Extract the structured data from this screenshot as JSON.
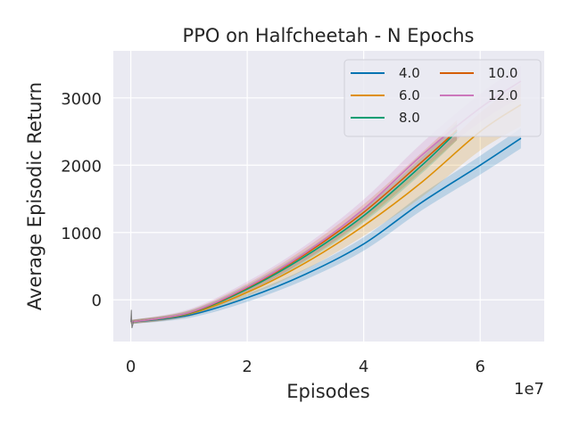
{
  "chart_data": {
    "type": "line",
    "title": "PPO on Halfcheetah - N Epochs",
    "xlabel": "Episodes",
    "ylabel": "Average Episodic Return",
    "x_scale_label": "1e7",
    "xlim": [
      -0.3,
      7.1
    ],
    "ylim": [
      -620,
      3700
    ],
    "x_ticks": [
      0,
      2,
      4,
      6
    ],
    "y_ticks": [
      0,
      1000,
      2000,
      3000
    ],
    "x_tick_labels": [
      "0",
      "2",
      "4",
      "6"
    ],
    "y_tick_labels": [
      "0",
      "1000",
      "2000",
      "3000"
    ],
    "grid": true,
    "legend_position": "top-right",
    "series": [
      {
        "name": "4.0",
        "color": "#0173b2",
        "x": [
          0,
          1,
          2,
          3,
          4,
          5,
          6,
          6.7
        ],
        "y": [
          -330,
          -230,
          30,
          380,
          830,
          1450,
          2000,
          2400
        ],
        "band": [
          30,
          40,
          60,
          80,
          100,
          120,
          140,
          150
        ]
      },
      {
        "name": "6.0",
        "color": "#de8f05",
        "x": [
          0,
          1,
          2,
          3,
          4,
          5,
          6,
          6.7
        ],
        "y": [
          -330,
          -210,
          110,
          550,
          1100,
          1750,
          2500,
          2900
        ],
        "band": [
          30,
          40,
          60,
          100,
          150,
          220,
          280,
          320
        ]
      },
      {
        "name": "8.0",
        "color": "#029e73",
        "x": [
          0,
          1,
          2,
          3,
          4,
          5,
          5.6
        ],
        "y": [
          -330,
          -200,
          160,
          650,
          1250,
          2000,
          2500
        ],
        "band": [
          30,
          40,
          60,
          80,
          100,
          120,
          130
        ]
      },
      {
        "name": "10.0",
        "color": "#d55e00",
        "x": [
          0,
          1,
          2,
          3,
          4,
          5,
          5.6
        ],
        "y": [
          -330,
          -195,
          180,
          680,
          1300,
          2050,
          2520
        ],
        "band": [
          30,
          40,
          60,
          90,
          120,
          140,
          150
        ]
      },
      {
        "name": "12.0",
        "color": "#cc78bc",
        "x": [
          0,
          1,
          2,
          3,
          4,
          5,
          6,
          6.7
        ],
        "y": [
          -330,
          -190,
          190,
          700,
          1350,
          2150,
          2850,
          3250
        ],
        "band": [
          30,
          50,
          80,
          110,
          140,
          180,
          210,
          230
        ]
      }
    ]
  }
}
